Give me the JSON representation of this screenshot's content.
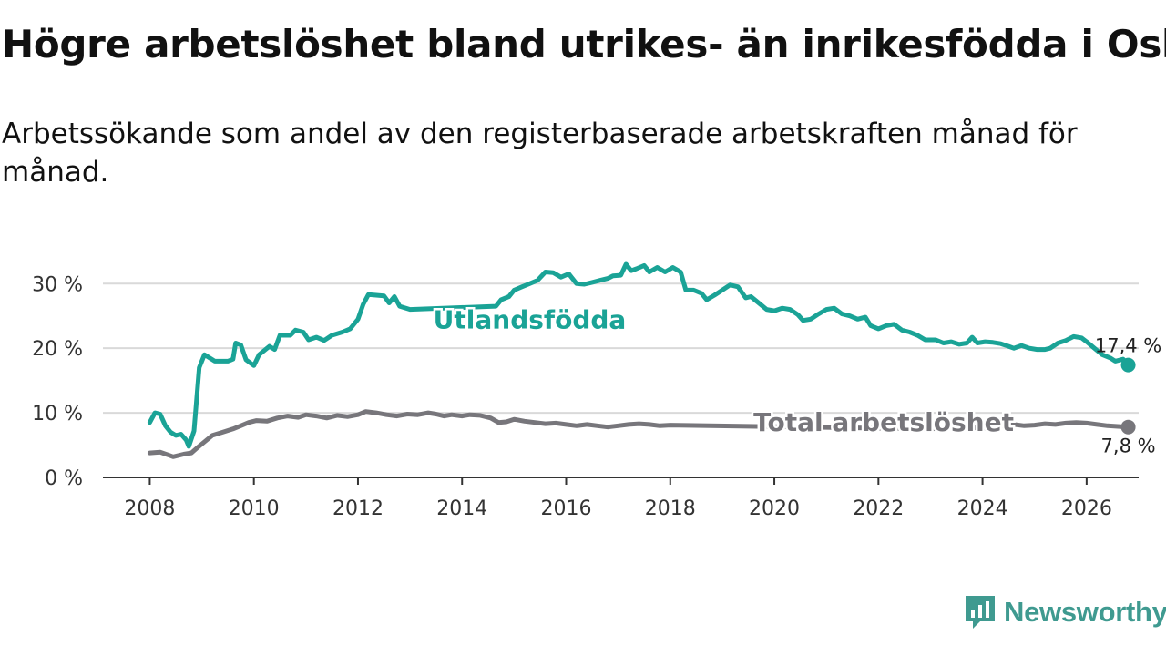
{
  "title": "Högre arbetslöshet bland utrikes- än inrikesfödda i Osby",
  "subtitle": "Arbetssökande som andel av den registerbaserade arbetskraften månad för månad.",
  "brand": {
    "name": "Newsworthy",
    "color": "#3f9a90"
  },
  "chart_data": {
    "type": "line",
    "title": "Högre arbetslöshet bland utrikes- än inrikesfödda i Osby",
    "xlabel": "",
    "ylabel": "",
    "x_ticks": [
      2008,
      2010,
      2012,
      2014,
      2016,
      2018,
      2020,
      2022,
      2024,
      2026
    ],
    "x_tick_labels": [
      "2008",
      "2010",
      "2012",
      "2014",
      "2016",
      "2018",
      "2020",
      "2022",
      "2024",
      "2026"
    ],
    "y_ticks": [
      0,
      10,
      20,
      30
    ],
    "y_tick_labels": [
      "0 %",
      "10 %",
      "20 %",
      "30 %"
    ],
    "xlim": [
      2007.1,
      2027.0
    ],
    "ylim": [
      0,
      33
    ],
    "grid": true,
    "series": [
      {
        "name": "Utlandsfödda",
        "color": "#1aa396",
        "end_label": "17,4 %",
        "points": [
          [
            2008.0,
            8.5
          ],
          [
            2008.1,
            10.0
          ],
          [
            2008.2,
            9.8
          ],
          [
            2008.3,
            8.0
          ],
          [
            2008.4,
            7.0
          ],
          [
            2008.5,
            6.5
          ],
          [
            2008.6,
            6.7
          ],
          [
            2008.7,
            5.8
          ],
          [
            2008.75,
            4.8
          ],
          [
            2008.85,
            7.2
          ],
          [
            2008.95,
            17.0
          ],
          [
            2009.05,
            19.0
          ],
          [
            2009.25,
            18.0
          ],
          [
            2009.5,
            18.0
          ],
          [
            2009.6,
            18.3
          ],
          [
            2009.65,
            20.8
          ],
          [
            2009.75,
            20.5
          ],
          [
            2009.85,
            18.2
          ],
          [
            2010.0,
            17.3
          ],
          [
            2010.1,
            19.0
          ],
          [
            2010.3,
            20.3
          ],
          [
            2010.4,
            19.8
          ],
          [
            2010.5,
            22.0
          ],
          [
            2010.7,
            22.0
          ],
          [
            2010.8,
            22.8
          ],
          [
            2010.95,
            22.5
          ],
          [
            2011.05,
            21.3
          ],
          [
            2011.2,
            21.7
          ],
          [
            2011.35,
            21.2
          ],
          [
            2011.5,
            22.0
          ],
          [
            2011.7,
            22.5
          ],
          [
            2011.85,
            23.0
          ],
          [
            2012.0,
            24.5
          ],
          [
            2012.1,
            26.8
          ],
          [
            2012.2,
            28.3
          ],
          [
            2012.35,
            28.2
          ],
          [
            2012.5,
            28.1
          ],
          [
            2012.6,
            27.0
          ],
          [
            2012.7,
            28.0
          ],
          [
            2012.8,
            26.5
          ],
          [
            2013.0,
            26.0
          ],
          [
            2014.65,
            26.5
          ],
          [
            2014.75,
            27.5
          ],
          [
            2014.9,
            28.0
          ],
          [
            2015.0,
            29.0
          ],
          [
            2015.15,
            29.5
          ],
          [
            2015.3,
            30.0
          ],
          [
            2015.45,
            30.5
          ],
          [
            2015.6,
            31.8
          ],
          [
            2015.75,
            31.7
          ],
          [
            2015.9,
            31.0
          ],
          [
            2016.05,
            31.5
          ],
          [
            2016.2,
            30.0
          ],
          [
            2016.35,
            29.9
          ],
          [
            2016.5,
            30.2
          ],
          [
            2016.65,
            30.5
          ],
          [
            2016.8,
            30.8
          ],
          [
            2016.9,
            31.2
          ],
          [
            2017.05,
            31.3
          ],
          [
            2017.15,
            33.0
          ],
          [
            2017.25,
            32.0
          ],
          [
            2017.35,
            32.3
          ],
          [
            2017.5,
            32.8
          ],
          [
            2017.6,
            31.8
          ],
          [
            2017.75,
            32.5
          ],
          [
            2017.9,
            31.8
          ],
          [
            2018.05,
            32.5
          ],
          [
            2018.2,
            31.8
          ],
          [
            2018.3,
            29.0
          ],
          [
            2018.45,
            29.0
          ],
          [
            2018.6,
            28.5
          ],
          [
            2018.7,
            27.5
          ],
          [
            2018.85,
            28.2
          ],
          [
            2019.0,
            29.0
          ],
          [
            2019.15,
            29.8
          ],
          [
            2019.3,
            29.5
          ],
          [
            2019.45,
            27.8
          ],
          [
            2019.55,
            28.0
          ],
          [
            2019.7,
            27.0
          ],
          [
            2019.85,
            26.0
          ],
          [
            2020.0,
            25.8
          ],
          [
            2020.15,
            26.2
          ],
          [
            2020.3,
            26.0
          ],
          [
            2020.45,
            25.2
          ],
          [
            2020.55,
            24.3
          ],
          [
            2020.7,
            24.5
          ],
          [
            2020.85,
            25.3
          ],
          [
            2021.0,
            26.0
          ],
          [
            2021.15,
            26.2
          ],
          [
            2021.3,
            25.3
          ],
          [
            2021.45,
            25.0
          ],
          [
            2021.6,
            24.5
          ],
          [
            2021.75,
            24.8
          ],
          [
            2021.85,
            23.5
          ],
          [
            2022.0,
            23.0
          ],
          [
            2022.15,
            23.5
          ],
          [
            2022.3,
            23.7
          ],
          [
            2022.45,
            22.8
          ],
          [
            2022.6,
            22.5
          ],
          [
            2022.75,
            22.0
          ],
          [
            2022.9,
            21.3
          ],
          [
            2023.1,
            21.3
          ],
          [
            2023.25,
            20.8
          ],
          [
            2023.4,
            21.0
          ],
          [
            2023.55,
            20.6
          ],
          [
            2023.7,
            20.8
          ],
          [
            2023.8,
            21.7
          ],
          [
            2023.9,
            20.8
          ],
          [
            2024.05,
            21.0
          ],
          [
            2024.2,
            20.9
          ],
          [
            2024.35,
            20.7
          ],
          [
            2024.5,
            20.3
          ],
          [
            2024.6,
            20.0
          ],
          [
            2024.75,
            20.4
          ],
          [
            2024.9,
            20.0
          ],
          [
            2025.05,
            19.8
          ],
          [
            2025.2,
            19.8
          ],
          [
            2025.3,
            20.0
          ],
          [
            2025.45,
            20.8
          ],
          [
            2025.6,
            21.2
          ],
          [
            2025.75,
            21.8
          ],
          [
            2025.9,
            21.6
          ],
          [
            2026.0,
            21.0
          ],
          [
            2026.15,
            20.0
          ],
          [
            2026.3,
            19.0
          ],
          [
            2026.45,
            18.5
          ],
          [
            2026.55,
            18.0
          ],
          [
            2026.7,
            18.3
          ],
          [
            2026.8,
            17.4
          ]
        ]
      },
      {
        "name": "Total arbetslöshet",
        "color": "#77767b",
        "end_label": "7,8 %",
        "points": [
          [
            2008.0,
            3.8
          ],
          [
            2008.2,
            3.9
          ],
          [
            2008.35,
            3.5
          ],
          [
            2008.45,
            3.2
          ],
          [
            2008.65,
            3.6
          ],
          [
            2008.8,
            3.8
          ],
          [
            2008.9,
            4.5
          ],
          [
            2009.05,
            5.5
          ],
          [
            2009.2,
            6.5
          ],
          [
            2009.4,
            7.0
          ],
          [
            2009.6,
            7.5
          ],
          [
            2009.75,
            8.0
          ],
          [
            2009.9,
            8.5
          ],
          [
            2010.05,
            8.8
          ],
          [
            2010.25,
            8.7
          ],
          [
            2010.45,
            9.2
          ],
          [
            2010.65,
            9.5
          ],
          [
            2010.85,
            9.3
          ],
          [
            2011.0,
            9.7
          ],
          [
            2011.2,
            9.5
          ],
          [
            2011.4,
            9.2
          ],
          [
            2011.6,
            9.6
          ],
          [
            2011.8,
            9.4
          ],
          [
            2012.0,
            9.7
          ],
          [
            2012.15,
            10.2
          ],
          [
            2012.35,
            10.0
          ],
          [
            2012.55,
            9.7
          ],
          [
            2012.75,
            9.5
          ],
          [
            2012.95,
            9.8
          ],
          [
            2013.15,
            9.7
          ],
          [
            2013.35,
            10.0
          ],
          [
            2013.5,
            9.8
          ],
          [
            2013.65,
            9.5
          ],
          [
            2013.8,
            9.7
          ],
          [
            2014.0,
            9.5
          ],
          [
            2014.15,
            9.7
          ],
          [
            2014.35,
            9.6
          ],
          [
            2014.55,
            9.2
          ],
          [
            2014.7,
            8.5
          ],
          [
            2014.85,
            8.6
          ],
          [
            2015.0,
            9.0
          ],
          [
            2015.2,
            8.7
          ],
          [
            2015.4,
            8.5
          ],
          [
            2015.6,
            8.3
          ],
          [
            2015.8,
            8.4
          ],
          [
            2016.0,
            8.2
          ],
          [
            2016.2,
            8.0
          ],
          [
            2016.4,
            8.2
          ],
          [
            2016.6,
            8.0
          ],
          [
            2016.8,
            7.8
          ],
          [
            2017.0,
            8.0
          ],
          [
            2017.2,
            8.2
          ],
          [
            2017.4,
            8.3
          ],
          [
            2017.6,
            8.2
          ],
          [
            2017.8,
            8.0
          ],
          [
            2018.0,
            8.1
          ],
          [
            2023.0,
            7.5
          ],
          [
            2023.2,
            7.6
          ],
          [
            2023.4,
            7.7
          ],
          [
            2023.6,
            7.6
          ],
          [
            2023.8,
            7.7
          ],
          [
            2024.0,
            7.6
          ],
          [
            2024.2,
            7.8
          ],
          [
            2024.4,
            8.0
          ],
          [
            2024.6,
            8.2
          ],
          [
            2024.8,
            8.0
          ],
          [
            2025.0,
            8.1
          ],
          [
            2025.2,
            8.3
          ],
          [
            2025.4,
            8.2
          ],
          [
            2025.6,
            8.4
          ],
          [
            2025.8,
            8.5
          ],
          [
            2026.0,
            8.4
          ],
          [
            2026.2,
            8.2
          ],
          [
            2026.4,
            8.0
          ],
          [
            2026.6,
            7.9
          ],
          [
            2026.8,
            7.8
          ]
        ]
      }
    ],
    "annotations": [
      {
        "text": "Utlandsfödda",
        "series": "Utlandsfödda",
        "x": 2015.3,
        "y": 24.5,
        "anchor": "middle"
      },
      {
        "text": "Total arbetslöshet",
        "series": "Total arbetslöshet",
        "x": 2022.1,
        "y": 8.6,
        "anchor": "middle"
      }
    ]
  }
}
